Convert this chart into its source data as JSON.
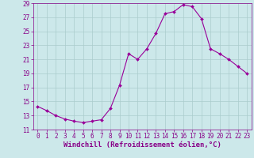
{
  "xlabel": "Windchill (Refroidissement éolien,°C)",
  "x": [
    0,
    1,
    2,
    3,
    4,
    5,
    6,
    7,
    8,
    9,
    10,
    11,
    12,
    13,
    14,
    15,
    16,
    17,
    18,
    19,
    20,
    21,
    22,
    23
  ],
  "y": [
    14.3,
    13.7,
    13.0,
    12.5,
    12.2,
    12.0,
    12.2,
    12.4,
    14.0,
    17.3,
    21.8,
    21.0,
    22.5,
    24.7,
    27.5,
    27.8,
    28.8,
    28.5,
    26.8,
    22.5,
    21.8,
    21.0,
    20.0,
    19.0
  ],
  "line_color": "#990099",
  "marker": "D",
  "marker_size": 2,
  "bg_color": "#cce8ea",
  "grid_color": "#aacccc",
  "ylim": [
    11,
    29
  ],
  "yticks": [
    11,
    13,
    15,
    17,
    19,
    21,
    23,
    25,
    27,
    29
  ],
  "xlim": [
    -0.5,
    23.5
  ],
  "xticks": [
    0,
    1,
    2,
    3,
    4,
    5,
    6,
    7,
    8,
    9,
    10,
    11,
    12,
    13,
    14,
    15,
    16,
    17,
    18,
    19,
    20,
    21,
    22,
    23
  ],
  "tick_color": "#880088",
  "label_color": "#880088",
  "label_fontsize": 6.5,
  "tick_fontsize": 5.5
}
